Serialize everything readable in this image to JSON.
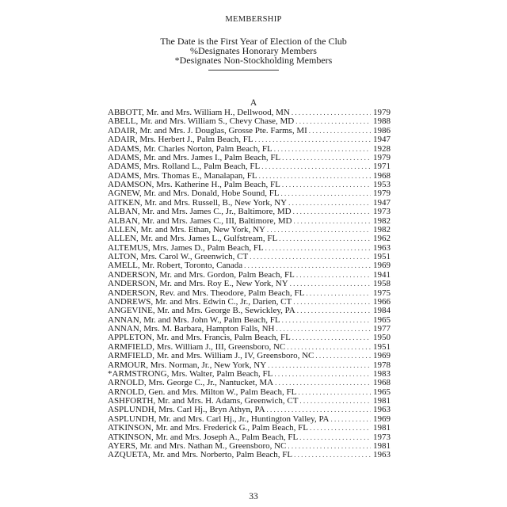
{
  "header": {
    "title": "MEMBERSHIP",
    "line1": "The Date is the First Year of Election of the Club",
    "line2": "%Designates Honorary Members",
    "line3": "*Designates Non-Stockholding Members"
  },
  "section_letter": "A",
  "members": [
    {
      "name": "ABBOTT, Mr. and Mrs. William H., Dellwood, MN",
      "year": "1979"
    },
    {
      "name": "ABELL, Mr. and Mrs. William S., Chevy Chase, MD",
      "year": "1988"
    },
    {
      "name": "ADAIR, Mr. and Mrs. J. Douglas, Grosse Pte. Farms, MI",
      "year": "1986"
    },
    {
      "name": "ADAIR, Mrs. Herbert J., Palm Beach, FL",
      "year": "1947"
    },
    {
      "name": "ADAMS, Mr. Charles Norton, Palm Beach, FL",
      "year": "1928"
    },
    {
      "name": "ADAMS, Mr. and Mrs. James I., Palm Beach, FL",
      "year": "1979"
    },
    {
      "name": "ADAMS, Mrs. Rolland L., Palm Beach, FL",
      "year": "1971"
    },
    {
      "name": "ADAMS, Mrs. Thomas E., Manalapan, FL",
      "year": "1968"
    },
    {
      "name": "ADAMSON, Mrs. Katherine H., Palm Beach, FL",
      "year": "1953"
    },
    {
      "name": "AGNEW, Mr. and Mrs. Donald, Hobe Sound, FL",
      "year": "1979"
    },
    {
      "name": "AITKEN, Mr. and Mrs. Russell, B., New York, NY",
      "year": "1947"
    },
    {
      "name": "ALBAN, Mr. and Mrs. James C., Jr., Baltimore, MD",
      "year": "1973"
    },
    {
      "name": "ALBAN, Mr. and Mrs. James C., III, Baltimore, MD",
      "year": "1982"
    },
    {
      "name": "ALLEN, Mr. and Mrs. Ethan, New York, NY",
      "year": "1982"
    },
    {
      "name": "ALLEN, Mr. and Mrs. James L., Gulfstream, FL",
      "year": "1962"
    },
    {
      "name": "ALTEMUS, Mrs. James D., Palm Beach, FL",
      "year": "1963"
    },
    {
      "name": "ALTON, Mrs. Carol W., Greenwich, CT",
      "year": "1951"
    },
    {
      "name": "AMELL, Mr. Robert, Toronto, Canada",
      "year": "1969"
    },
    {
      "name": "ANDERSON, Mr. and Mrs. Gordon, Palm Beach, FL",
      "year": "1941"
    },
    {
      "name": "ANDERSON, Mr. and Mrs. Roy E., New York, NY",
      "year": "1958"
    },
    {
      "name": "ANDERSON, Rev. and Mrs. Theodore, Palm Beach, FL",
      "year": "1975"
    },
    {
      "name": "ANDREWS, Mr. and Mrs. Edwin C., Jr., Darien, CT",
      "year": "1966"
    },
    {
      "name": "ANGEVINE, Mr. and Mrs. George B., Sewickley, PA",
      "year": "1984"
    },
    {
      "name": "ANNAN, Mr. and Mrs. John W., Palm Beach, FL",
      "year": "1965"
    },
    {
      "name": "ANNAN, Mrs. M. Barbara, Hampton Falls, NH",
      "year": "1977"
    },
    {
      "name": "APPLETON, Mr. and Mrs. Francis, Palm Beach, FL",
      "year": "1950"
    },
    {
      "name": "ARMFIELD, Mrs. William J., III, Greensboro, NC",
      "year": "1951"
    },
    {
      "name": "ARMFIELD, Mr. and Mrs. William J., IV, Greensboro, NC",
      "year": "1969"
    },
    {
      "name": "ARMOUR, Mrs. Norman, Jr., New York, NY",
      "year": "1978"
    },
    {
      "name": "*ARMSTRONG, Mrs. Walter, Palm Beach, FL",
      "year": "1983"
    },
    {
      "name": "ARNOLD, Mrs. George C., Jr., Nantucket, MA",
      "year": "1968"
    },
    {
      "name": "ARNOLD, Gen. and Mrs. Milton W., Palm Beach, FL",
      "year": "1965"
    },
    {
      "name": "ASHFORTH, Mr. and Mrs. H. Adams, Greenwich, CT",
      "year": "1981"
    },
    {
      "name": "ASPLUNDH, Mrs. Carl Hj., Bryn Athyn, PA",
      "year": "1963"
    },
    {
      "name": "ASPLUNDH, Mr. and Mrs. Carl Hj., Jr., Huntington Valley, PA",
      "year": "1969"
    },
    {
      "name": "ATKINSON, Mr. and Mrs. Frederick G., Palm Beach, FL",
      "year": "1981"
    },
    {
      "name": "ATKINSON, Mr. and Mrs. Joseph A., Palm Beach, FL",
      "year": "1973"
    },
    {
      "name": "AYERS, Mr. and Mrs. Nathan M., Greensboro, NC",
      "year": "1981"
    },
    {
      "name": "AZQUETA, Mr. and Mrs. Norberto, Palm Beach, FL",
      "year": "1963"
    }
  ],
  "page_number": "33"
}
